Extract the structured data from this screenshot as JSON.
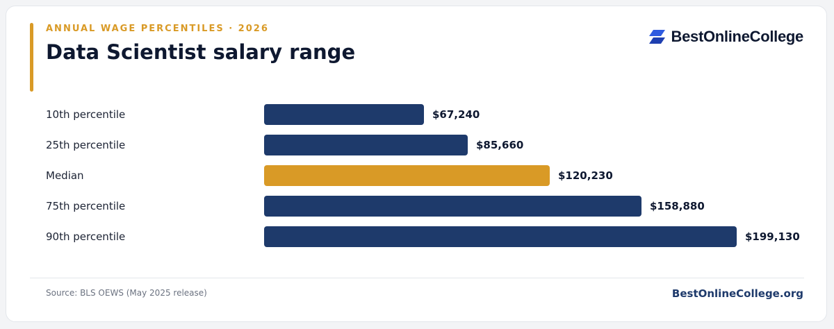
{
  "header": {
    "eyebrow": "ANNUAL WAGE PERCENTILES · 2026",
    "title": "Data Scientist salary range"
  },
  "brand": {
    "name": "BestOnlineCollege",
    "logo_icon": "stacked-parallelogram-logo-icon"
  },
  "footer": {
    "source": "Source: BLS OEWS (May 2025 release)",
    "site": "BestOnlineCollege.org"
  },
  "colors": {
    "accent": "#d99a26",
    "bar_default": "#1e3a6b",
    "bar_highlight": "#d99a26",
    "logo_primary": "#2f5be0",
    "logo_secondary": "#1e3fb0"
  },
  "chart_data": {
    "type": "bar",
    "orientation": "horizontal",
    "categories": [
      "10th percentile",
      "25th percentile",
      "Median",
      "75th percentile",
      "90th percentile"
    ],
    "values": [
      67240,
      85660,
      120230,
      158880,
      199130
    ],
    "value_labels": [
      "$67,240",
      "$85,660",
      "$120,230",
      "$158,880",
      "$199,130"
    ],
    "highlight": "Median",
    "xlim": [
      0,
      199130
    ],
    "grid": false,
    "legend": "none"
  }
}
